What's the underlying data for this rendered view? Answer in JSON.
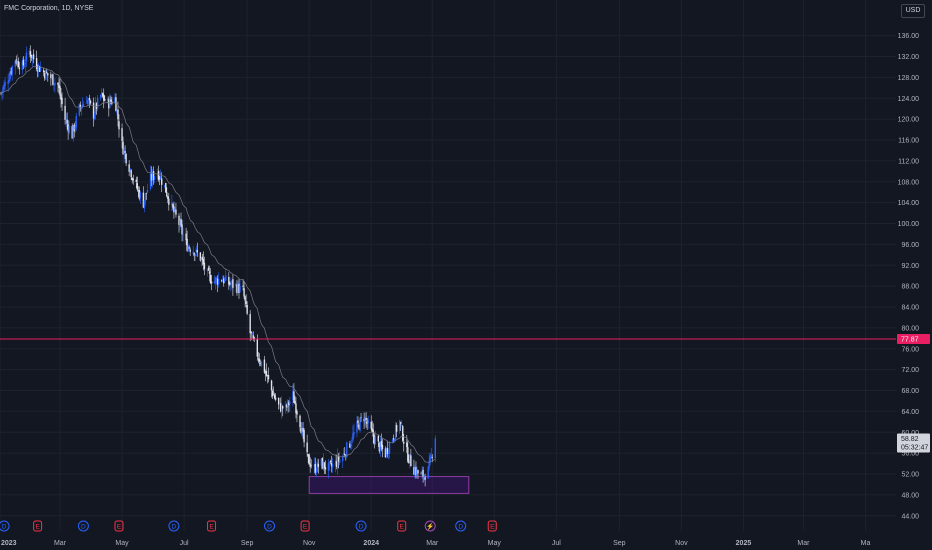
{
  "header": {
    "symbol_line": "FMC Corporation, 1D, NYSE",
    "currency_button": "USD"
  },
  "colors": {
    "background": "#131722",
    "grid": "#1e222d",
    "axis_text": "#b2b5be",
    "up_candle": "#2962ff",
    "down_candle": "#e0e3eb",
    "moving_average": "#787b86",
    "horizontal_line": "#e91e63",
    "zone_fill": "#4a148c",
    "zone_border": "#ab47bc"
  },
  "price_axis": {
    "ticks": [
      "136.00",
      "132.00",
      "128.00",
      "124.00",
      "120.00",
      "116.00",
      "112.00",
      "108.00",
      "104.00",
      "100.00",
      "96.00",
      "92.00",
      "88.00",
      "84.00",
      "80.00",
      "76.00",
      "72.00",
      "68.00",
      "64.00",
      "60.00",
      "56.00",
      "52.00",
      "48.00",
      "44.00"
    ]
  },
  "time_axis": {
    "ticks": [
      "2023",
      "Mar",
      "May",
      "Jul",
      "Sep",
      "Nov",
      "2024",
      "Mar",
      "May",
      "Jul",
      "Sep",
      "Nov",
      "2025",
      "Mar",
      "Ma"
    ]
  },
  "price_labels": {
    "horizontal_line": "77.87",
    "last_price": "58.82",
    "countdown": "05:32:47"
  },
  "event_markers": [
    "D",
    "E",
    "D",
    "E",
    "D",
    "E",
    "D",
    "E",
    "D",
    "E",
    "lightning",
    "D",
    "E"
  ],
  "chart_data": {
    "type": "candlestick",
    "title": "FMC Corporation, 1D, NYSE",
    "currency": "USD",
    "ylim": [
      43,
      139
    ],
    "xlim": [
      "2023-01-01",
      "2025-05-31"
    ],
    "grid": true,
    "horizontal_line": 77.87,
    "zone": {
      "x_start": "2023-11-01",
      "x_end": "2024-04-06",
      "y_low": 48.3,
      "y_high": 51.5
    },
    "last_price": 58.82,
    "countdown": "05:32:47",
    "closes": [
      [
        "2023-01-02",
        125.0
      ],
      [
        "2023-01-09",
        128.0
      ],
      [
        "2023-01-16",
        131.5
      ],
      [
        "2023-01-23",
        130.0
      ],
      [
        "2023-01-30",
        133.0
      ],
      [
        "2023-02-06",
        130.5
      ],
      [
        "2023-02-13",
        129.0
      ],
      [
        "2023-02-20",
        128.0
      ],
      [
        "2023-02-27",
        126.5
      ],
      [
        "2023-03-06",
        120.0
      ],
      [
        "2023-03-13",
        117.0
      ],
      [
        "2023-03-20",
        122.0
      ],
      [
        "2023-03-27",
        124.0
      ],
      [
        "2023-04-03",
        121.0
      ],
      [
        "2023-04-10",
        124.5
      ],
      [
        "2023-04-17",
        123.0
      ],
      [
        "2023-04-24",
        124.0
      ],
      [
        "2023-05-01",
        115.0
      ],
      [
        "2023-05-08",
        111.0
      ],
      [
        "2023-05-15",
        107.0
      ],
      [
        "2023-05-22",
        104.0
      ],
      [
        "2023-05-29",
        108.5
      ],
      [
        "2023-06-05",
        110.0
      ],
      [
        "2023-06-12",
        107.0
      ],
      [
        "2023-06-19",
        103.0
      ],
      [
        "2023-06-26",
        100.0
      ],
      [
        "2023-07-03",
        96.0
      ],
      [
        "2023-07-10",
        95.0
      ],
      [
        "2023-07-17",
        93.5
      ],
      [
        "2023-07-24",
        90.0
      ],
      [
        "2023-07-31",
        89.0
      ],
      [
        "2023-08-07",
        89.5
      ],
      [
        "2023-08-14",
        88.5
      ],
      [
        "2023-08-21",
        88.0
      ],
      [
        "2023-08-28",
        87.0
      ],
      [
        "2023-09-04",
        79.0
      ],
      [
        "2023-09-11",
        75.0
      ],
      [
        "2023-09-18",
        72.0
      ],
      [
        "2023-09-25",
        68.0
      ],
      [
        "2023-10-02",
        65.0
      ],
      [
        "2023-10-09",
        64.5
      ],
      [
        "2023-10-16",
        67.0
      ],
      [
        "2023-10-23",
        62.0
      ],
      [
        "2023-10-30",
        55.0
      ],
      [
        "2023-11-06",
        53.0
      ],
      [
        "2023-11-13",
        54.0
      ],
      [
        "2023-11-20",
        53.0
      ],
      [
        "2023-11-27",
        54.0
      ],
      [
        "2023-12-04",
        55.5
      ],
      [
        "2023-12-11",
        58.0
      ],
      [
        "2023-12-18",
        61.0
      ],
      [
        "2023-12-25",
        63.0
      ],
      [
        "2024-01-01",
        60.0
      ],
      [
        "2024-01-08",
        57.5
      ],
      [
        "2024-01-15",
        56.0
      ],
      [
        "2024-01-22",
        59.0
      ],
      [
        "2024-01-29",
        62.0
      ],
      [
        "2024-02-05",
        56.0
      ],
      [
        "2024-02-12",
        53.0
      ],
      [
        "2024-02-19",
        51.5
      ],
      [
        "2024-02-26",
        52.5
      ],
      [
        "2024-03-04",
        58.82
      ]
    ]
  }
}
